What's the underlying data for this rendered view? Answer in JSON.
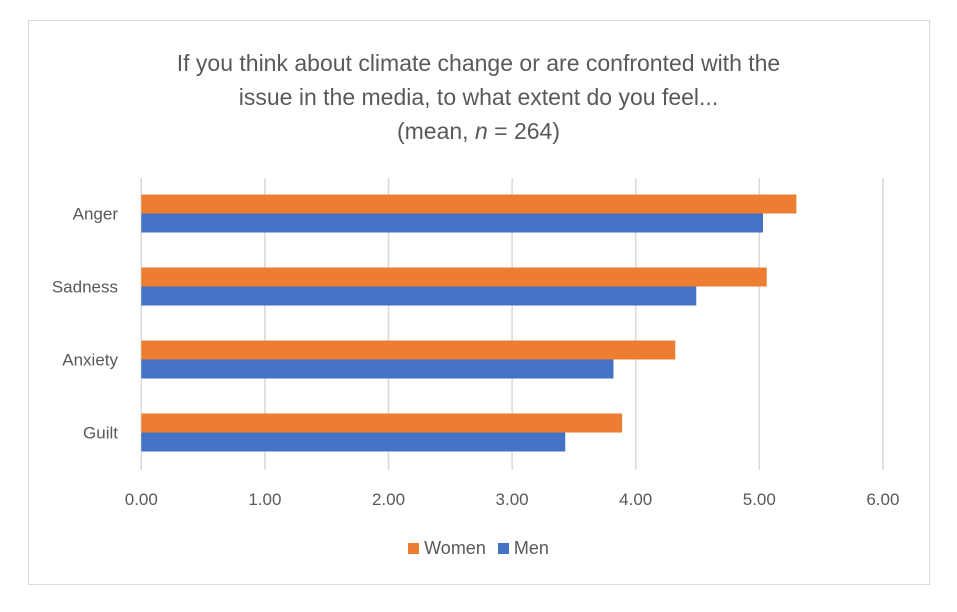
{
  "chart_data": {
    "type": "bar",
    "orientation": "horizontal",
    "title_line1": "If you think about climate change or are confronted with the",
    "title_line2": "issue in the media, to what extent do you feel...",
    "subtitle_prefix": "(mean, ",
    "subtitle_n": "n",
    "subtitle_suffix": " = 264)",
    "categories": [
      "Anger",
      "Sadness",
      "Anxiety",
      "Guilt"
    ],
    "series": [
      {
        "name": "Women",
        "color": "#ed7d31",
        "values": [
          5.3,
          5.06,
          4.32,
          3.89
        ]
      },
      {
        "name": "Men",
        "color": "#4472c4",
        "values": [
          5.03,
          4.49,
          3.82,
          3.43
        ]
      }
    ],
    "xlim": [
      0,
      6
    ],
    "x_ticks": [
      "0.00",
      "1.00",
      "2.00",
      "3.00",
      "4.00",
      "5.00",
      "6.00"
    ],
    "grid": true,
    "legend_position": "bottom"
  }
}
